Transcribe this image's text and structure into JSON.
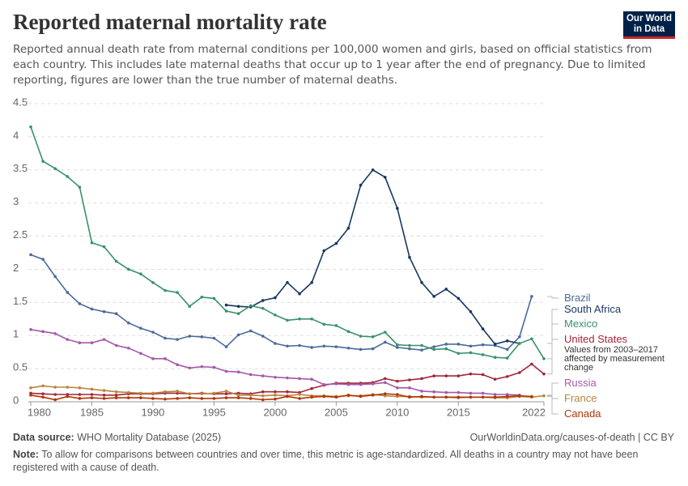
{
  "chart_data": {
    "type": "line",
    "title": "Reported maternal mortality rate",
    "subtitle": "Reported annual death rate from maternal conditions per 100,000 women and girls, based on official statistics from each country. This includes late maternal deaths that occur up to 1 year after the end of pregnancy. Due to limited reporting, figures are lower than the true number of maternal deaths.",
    "logo": "Our World in Data",
    "source_label": "Data source:",
    "source": "WHO Mortality Database (2025)",
    "url": "OurWorldinData.org/causes-of-death | CC BY",
    "note_label": "Note:",
    "note": "To allow for comparisons between countries and over time, this metric is age-standardized. All deaths in a country may not have been registered with a cause of death.",
    "grid": true,
    "x": [
      1980,
      1981,
      1982,
      1983,
      1984,
      1985,
      1986,
      1987,
      1988,
      1989,
      1990,
      1991,
      1992,
      1993,
      1994,
      1995,
      1996,
      1997,
      1998,
      1999,
      2000,
      2001,
      2002,
      2003,
      2004,
      2005,
      2006,
      2007,
      2008,
      2009,
      2010,
      2011,
      2012,
      2013,
      2014,
      2015,
      2016,
      2017,
      2018,
      2019,
      2020,
      2021,
      2022
    ],
    "xlim": [
      1980,
      2022
    ],
    "xticks": [
      1980,
      1985,
      1990,
      1995,
      2000,
      2005,
      2010,
      2015,
      2022
    ],
    "ylim": [
      0,
      4.5
    ],
    "yticks": [
      0,
      0.5,
      1,
      1.5,
      2,
      2.5,
      3,
      3.5,
      4,
      4.5
    ],
    "series": [
      {
        "name": "Brazil",
        "color": "#4c6a9c",
        "values": [
          2.22,
          2.15,
          1.89,
          1.65,
          1.48,
          1.4,
          1.36,
          1.33,
          1.19,
          1.11,
          1.05,
          0.96,
          0.94,
          0.99,
          0.98,
          0.96,
          0.83,
          1.01,
          1.07,
          0.99,
          0.88,
          0.84,
          0.85,
          0.82,
          0.84,
          0.83,
          0.81,
          0.79,
          0.8,
          0.9,
          0.82,
          0.8,
          0.78,
          0.83,
          0.87,
          0.87,
          0.84,
          0.86,
          0.85,
          0.79,
          0.98,
          1.59,
          null
        ]
      },
      {
        "name": "South Africa",
        "color": "#18375f",
        "values": [
          null,
          null,
          null,
          null,
          null,
          null,
          null,
          null,
          null,
          null,
          null,
          null,
          null,
          null,
          null,
          null,
          1.46,
          1.44,
          1.43,
          1.53,
          1.57,
          1.8,
          1.63,
          1.8,
          2.28,
          2.39,
          2.62,
          3.27,
          3.5,
          3.39,
          2.92,
          2.18,
          1.8,
          1.59,
          1.7,
          1.56,
          1.36,
          1.1,
          0.87,
          0.92,
          0.88,
          null,
          null
        ]
      },
      {
        "name": "Mexico",
        "color": "#38926c",
        "values": [
          4.15,
          3.63,
          3.52,
          3.4,
          3.24,
          2.4,
          2.34,
          2.12,
          2.0,
          1.93,
          1.8,
          1.68,
          1.65,
          1.44,
          1.58,
          1.56,
          1.37,
          1.33,
          1.45,
          1.41,
          1.31,
          1.23,
          1.25,
          1.25,
          1.17,
          1.15,
          1.06,
          0.99,
          0.98,
          1.05,
          0.86,
          0.85,
          0.85,
          0.79,
          0.8,
          0.73,
          0.74,
          0.71,
          0.67,
          0.66,
          0.88,
          0.95,
          0.65
        ]
      },
      {
        "name": "United States",
        "color": "#a2263b",
        "note": "Values from 2003–2017 affected by measurement change",
        "values": [
          0.13,
          0.12,
          0.11,
          0.11,
          0.11,
          0.11,
          0.1,
          0.1,
          0.12,
          0.12,
          0.12,
          0.13,
          0.13,
          0.12,
          0.13,
          0.12,
          0.12,
          0.13,
          0.12,
          0.15,
          0.15,
          0.15,
          0.14,
          0.2,
          0.25,
          0.28,
          0.28,
          0.28,
          0.29,
          0.35,
          0.31,
          0.33,
          0.35,
          0.39,
          0.39,
          0.39,
          0.42,
          0.41,
          0.34,
          0.38,
          0.44,
          0.57,
          0.42
        ]
      },
      {
        "name": "Russia",
        "color": "#a559aa",
        "values": [
          1.09,
          1.06,
          1.03,
          0.94,
          0.89,
          0.89,
          0.94,
          0.85,
          0.81,
          0.73,
          0.65,
          0.65,
          0.56,
          0.51,
          0.53,
          0.52,
          0.46,
          0.45,
          0.41,
          0.39,
          0.37,
          0.36,
          0.35,
          0.34,
          0.26,
          0.27,
          0.26,
          0.26,
          0.27,
          0.29,
          0.21,
          0.21,
          0.16,
          0.15,
          0.14,
          0.14,
          0.13,
          0.13,
          0.11,
          0.11,
          0.1,
          null,
          null
        ]
      },
      {
        "name": "France",
        "color": "#b8863c",
        "values": [
          0.21,
          0.24,
          0.22,
          0.22,
          0.21,
          0.19,
          0.17,
          0.15,
          0.14,
          0.13,
          0.13,
          0.15,
          0.16,
          0.12,
          0.12,
          0.13,
          0.16,
          0.1,
          0.1,
          0.09,
          0.1,
          0.09,
          0.11,
          0.09,
          0.09,
          0.08,
          0.09,
          0.09,
          0.11,
          0.09,
          0.08,
          0.08,
          0.07,
          0.07,
          0.07,
          0.06,
          0.07,
          0.07,
          0.06,
          0.06,
          0.08,
          0.07,
          0.09
        ]
      },
      {
        "name": "Canada",
        "color": "#b13507",
        "values": [
          0.1,
          0.07,
          0.03,
          0.08,
          0.05,
          0.06,
          0.05,
          0.06,
          0.06,
          0.06,
          0.05,
          0.04,
          0.05,
          0.06,
          0.05,
          0.05,
          0.06,
          0.06,
          0.05,
          0.03,
          0.04,
          0.08,
          0.05,
          0.07,
          0.08,
          0.07,
          0.1,
          0.08,
          0.1,
          0.12,
          0.11,
          0.07,
          0.08,
          0.07,
          0.07,
          0.07,
          0.07,
          0.07,
          0.07,
          0.08,
          0.09,
          0.08,
          null
        ]
      }
    ]
  }
}
